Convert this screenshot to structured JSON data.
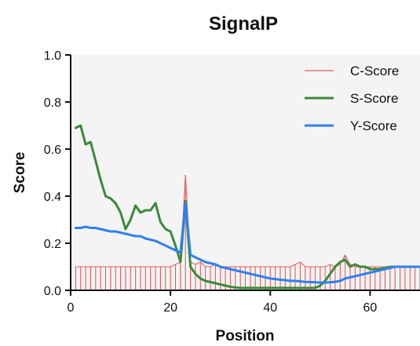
{
  "chart_data": {
    "type": "line",
    "title": "SignalP",
    "xlabel": "Position",
    "ylabel": "Score",
    "xlim": [
      0,
      70
    ],
    "ylim": [
      0,
      1
    ],
    "x_ticks": [
      0,
      20,
      40,
      60
    ],
    "y_ticks": [
      0.0,
      0.2,
      0.4,
      0.6,
      0.8,
      1.0
    ],
    "x_tick_labels": [
      "0",
      "20",
      "40",
      "60"
    ],
    "y_tick_labels": [
      "0.0",
      "0.2",
      "0.4",
      "0.6",
      "0.8",
      "1.0"
    ],
    "legend_position": "top-right",
    "plot_background": "#f4f4f4",
    "series": [
      {
        "name": "C-Score",
        "style": "impulse",
        "color": "#e85a5a",
        "x": [
          1,
          2,
          3,
          4,
          5,
          6,
          7,
          8,
          9,
          10,
          11,
          12,
          13,
          14,
          15,
          16,
          17,
          18,
          19,
          20,
          21,
          22,
          23,
          24,
          25,
          26,
          27,
          28,
          29,
          30,
          31,
          32,
          33,
          34,
          35,
          36,
          37,
          38,
          39,
          40,
          41,
          42,
          43,
          44,
          45,
          46,
          47,
          48,
          49,
          50,
          51,
          52,
          53,
          54,
          55,
          56,
          57,
          58,
          59,
          60,
          61,
          62,
          63,
          64,
          65,
          66,
          67,
          68,
          69,
          70
        ],
        "values": [
          0.1,
          0.1,
          0.1,
          0.1,
          0.1,
          0.1,
          0.1,
          0.1,
          0.1,
          0.1,
          0.1,
          0.1,
          0.1,
          0.1,
          0.1,
          0.1,
          0.1,
          0.1,
          0.1,
          0.1,
          0.11,
          0.12,
          0.49,
          0.12,
          0.11,
          0.12,
          0.1,
          0.1,
          0.11,
          0.1,
          0.1,
          0.1,
          0.1,
          0.1,
          0.1,
          0.1,
          0.1,
          0.1,
          0.1,
          0.1,
          0.1,
          0.1,
          0.1,
          0.1,
          0.11,
          0.12,
          0.1,
          0.1,
          0.1,
          0.1,
          0.1,
          0.11,
          0.1,
          0.11,
          0.15,
          0.11,
          0.1,
          0.1,
          0.1,
          0.1,
          0.1,
          0.1,
          0.1,
          0.1,
          0.1,
          0.1,
          0.1,
          0.1,
          0.1,
          0.1
        ]
      },
      {
        "name": "S-Score",
        "style": "line",
        "color": "#3a8a3a",
        "x": [
          1,
          2,
          3,
          4,
          5,
          6,
          7,
          8,
          9,
          10,
          11,
          12,
          13,
          14,
          15,
          16,
          17,
          18,
          19,
          20,
          21,
          22,
          23,
          24,
          25,
          26,
          27,
          28,
          29,
          30,
          31,
          32,
          33,
          34,
          35,
          36,
          37,
          38,
          39,
          40,
          41,
          42,
          43,
          44,
          45,
          46,
          47,
          48,
          49,
          50,
          51,
          52,
          53,
          54,
          55,
          56,
          57,
          58,
          59,
          60,
          61,
          62,
          63,
          64,
          65,
          66,
          67,
          68,
          69,
          70
        ],
        "values": [
          0.69,
          0.7,
          0.62,
          0.63,
          0.55,
          0.47,
          0.4,
          0.39,
          0.37,
          0.33,
          0.26,
          0.3,
          0.36,
          0.33,
          0.34,
          0.34,
          0.37,
          0.29,
          0.26,
          0.25,
          0.19,
          0.12,
          0.38,
          0.1,
          0.07,
          0.05,
          0.04,
          0.035,
          0.03,
          0.025,
          0.02,
          0.015,
          0.012,
          0.01,
          0.01,
          0.01,
          0.01,
          0.01,
          0.01,
          0.01,
          0.01,
          0.01,
          0.01,
          0.01,
          0.01,
          0.01,
          0.01,
          0.01,
          0.01,
          0.02,
          0.04,
          0.07,
          0.1,
          0.12,
          0.13,
          0.1,
          0.11,
          0.1,
          0.1,
          0.09,
          0.09,
          0.09,
          0.095,
          0.1,
          0.1,
          0.1,
          0.1,
          0.1,
          0.1,
          0.1
        ]
      },
      {
        "name": "Y-Score",
        "style": "line",
        "color": "#2f80ee",
        "x": [
          1,
          2,
          3,
          4,
          5,
          6,
          7,
          8,
          9,
          10,
          11,
          12,
          13,
          14,
          15,
          16,
          17,
          18,
          19,
          20,
          21,
          22,
          23,
          24,
          25,
          26,
          27,
          28,
          29,
          30,
          31,
          32,
          33,
          34,
          35,
          36,
          37,
          38,
          39,
          40,
          41,
          42,
          43,
          44,
          45,
          46,
          47,
          48,
          49,
          50,
          51,
          52,
          53,
          54,
          55,
          56,
          57,
          58,
          59,
          60,
          61,
          62,
          63,
          64,
          65,
          66,
          67,
          68,
          69,
          70
        ],
        "values": [
          0.265,
          0.265,
          0.27,
          0.265,
          0.265,
          0.26,
          0.255,
          0.25,
          0.25,
          0.245,
          0.24,
          0.235,
          0.23,
          0.23,
          0.22,
          0.215,
          0.21,
          0.2,
          0.19,
          0.18,
          0.17,
          0.16,
          0.37,
          0.15,
          0.14,
          0.13,
          0.12,
          0.115,
          0.11,
          0.1,
          0.095,
          0.09,
          0.085,
          0.08,
          0.075,
          0.07,
          0.065,
          0.06,
          0.055,
          0.05,
          0.048,
          0.045,
          0.043,
          0.04,
          0.04,
          0.038,
          0.036,
          0.035,
          0.034,
          0.033,
          0.033,
          0.034,
          0.036,
          0.04,
          0.05,
          0.055,
          0.06,
          0.065,
          0.07,
          0.075,
          0.08,
          0.085,
          0.09,
          0.095,
          0.1,
          0.1,
          0.1,
          0.1,
          0.1,
          0.1
        ]
      }
    ]
  }
}
